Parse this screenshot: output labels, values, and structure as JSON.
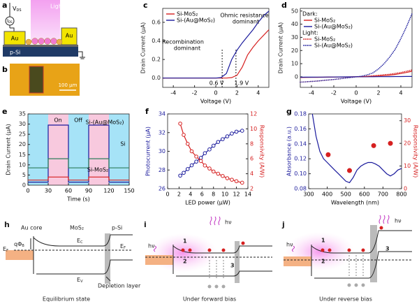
{
  "panel_a": {
    "label": "a",
    "light": "Light",
    "au_left": "Au",
    "au_right": "Au",
    "substrate": "p-Si",
    "v": {
      "main": "V",
      "sub": "DS"
    },
    "i": {
      "main": "I",
      "sub": "DS"
    }
  },
  "panel_b": {
    "label": "b",
    "scale": "100 μm"
  },
  "chart_data": [
    {
      "panel_label": "c",
      "type": "line",
      "xlabel": "Voltage (V)",
      "ylabel": "Drain Current (μA)",
      "xlim": [
        -5,
        5
      ],
      "ylim": [
        -0.1,
        0.75
      ],
      "xticks": [
        -4,
        -2,
        0,
        2,
        4
      ],
      "yticks": [
        {
          "value": 0,
          "label": "0.0"
        },
        0.2,
        0.4,
        0.6
      ],
      "legend": "upper left",
      "x": [
        -5,
        -4.5,
        -4,
        -3.5,
        -3,
        -2.5,
        -2,
        -1.5,
        -1,
        -0.5,
        0,
        0.5,
        1,
        1.5,
        2,
        2.5,
        3,
        3.5,
        4,
        4.5,
        5
      ],
      "series": [
        {
          "name": "Si-MoS₂",
          "color": "#d62020",
          "style": "solid",
          "values": [
            0,
            0,
            0,
            0,
            0,
            0,
            0,
            0,
            0,
            0,
            0,
            0,
            0,
            0.005,
            0.03,
            0.12,
            0.25,
            0.33,
            0.4,
            0.46,
            0.52
          ]
        },
        {
          "name": "Si-(Au@MoS₂)",
          "color": "#1a1a9c",
          "style": "solid",
          "values": [
            0,
            0,
            0,
            0,
            0,
            0,
            0,
            0,
            0,
            0,
            0,
            0.005,
            0.05,
            0.2,
            0.3,
            0.38,
            0.45,
            0.52,
            0.6,
            0.67,
            0.72
          ]
        }
      ],
      "annotations": [
        "Ohmic resistance",
        "dominant",
        "Recombination",
        "dominant"
      ],
      "reference_lines": [
        {
          "value": 0.6,
          "label": "0.6 V"
        },
        {
          "value": 1.9,
          "label": "1.9 V"
        }
      ]
    },
    {
      "panel_label": "d",
      "type": "line",
      "xlabel": "Voltage (V)",
      "ylabel": "Drain Current (μA)",
      "xlim": [
        -5,
        5
      ],
      "ylim": [
        -8,
        52
      ],
      "xticks": [
        -4,
        -2,
        0,
        2,
        4
      ],
      "yticks": [
        0,
        10,
        20,
        30,
        40,
        50
      ],
      "legend": "upper left",
      "legend_groups": [
        {
          "label": "Dark:",
          "series": [
            0,
            1
          ]
        },
        {
          "label": "Light:",
          "series": [
            2,
            3
          ]
        }
      ],
      "x": [
        -5,
        -4.5,
        -4,
        -3.5,
        -3,
        -2.5,
        -2,
        -1.5,
        -1,
        -0.5,
        0,
        0.5,
        1,
        1.5,
        2,
        2.5,
        3,
        3.5,
        4,
        4.5,
        5
      ],
      "series": [
        {
          "name": "Si-MoS₂",
          "color": "#d62020",
          "style": "solid",
          "values": [
            -0.5,
            -0.45,
            -0.4,
            -0.35,
            -0.3,
            -0.25,
            -0.2,
            -0.15,
            -0.1,
            -0.05,
            0,
            0.1,
            0.2,
            0.4,
            0.6,
            0.9,
            1.3,
            1.8,
            2.5,
            3.3,
            4.2
          ]
        },
        {
          "name": "Si-(Au@MoS₂)",
          "color": "#1a1a9c",
          "style": "solid",
          "values": [
            -0.3,
            -0.27,
            -0.24,
            -0.21,
            -0.18,
            -0.15,
            -0.12,
            -0.09,
            -0.06,
            -0.03,
            0,
            0.03,
            0.06,
            0.09,
            0.12,
            0.15,
            0.18,
            0.21,
            0.24,
            0.27,
            0.3
          ]
        },
        {
          "name": "Si-MoS₂",
          "color": "#d62020",
          "style": "dotted",
          "values": [
            -4,
            -3.8,
            -3.5,
            -3.2,
            -2.8,
            -2.4,
            -2,
            -1.5,
            -1,
            -0.5,
            0,
            0.2,
            0.5,
            0.8,
            1.2,
            1.6,
            2,
            2.6,
            3.3,
            4.2,
            5.2
          ]
        },
        {
          "name": "Si-(Au@MoS₂)",
          "color": "#1a1a9c",
          "style": "dotted",
          "values": [
            -4,
            -3.8,
            -3.5,
            -3.2,
            -2.8,
            -2.4,
            -2,
            -1.5,
            -1,
            -0.5,
            0,
            0.5,
            1.5,
            3,
            6,
            10,
            15,
            21,
            29,
            38,
            48
          ]
        }
      ]
    },
    {
      "panel_label": "e",
      "type": "line",
      "xlabel": "Time (s)",
      "ylabel": "Drain Current (μA)",
      "xlim": [
        0,
        150
      ],
      "ylim": [
        0,
        35
      ],
      "xticks": [
        0,
        30,
        60,
        90,
        120,
        150
      ],
      "yticks": [
        0,
        5,
        10,
        15,
        20,
        25,
        30,
        35
      ],
      "on_intervals": [
        [
          30,
          60
        ],
        [
          90,
          120
        ]
      ],
      "x": [
        0,
        30,
        30,
        60,
        60,
        90,
        90,
        120,
        120,
        150
      ],
      "series": [
        {
          "name": "Si-(Au@MoS₂)",
          "color": "#1a1a9c",
          "style": "solid",
          "values": [
            1.5,
            1.5,
            29.5,
            29.5,
            1.5,
            1.5,
            29.5,
            29.5,
            1.5,
            1.5
          ]
        },
        {
          "name": "Si",
          "color": "#2e7d5b",
          "style": "solid",
          "values": [
            8.5,
            8.5,
            13,
            13,
            8.5,
            8.5,
            13,
            13,
            8.5,
            8.5
          ]
        },
        {
          "name": "Si-MoS₂",
          "color": "#d62020",
          "style": "solid",
          "values": [
            2.5,
            2.5,
            4,
            4,
            2.5,
            2.5,
            4,
            4,
            2.5,
            2.5
          ]
        }
      ],
      "annotations": [
        "On",
        "Off",
        "Si-(Au@MoS₂)",
        "Si",
        "Si-MoS₂"
      ]
    },
    {
      "panel_label": "f",
      "type": "line",
      "xlabel": "LED power (μW)",
      "ylabel": "Photocurrent (μA)",
      "y2label": "Responsivity (A/W)",
      "xlim": [
        0,
        14
      ],
      "ylim": [
        26,
        34
      ],
      "y2lim": [
        2,
        12
      ],
      "xticks": [
        0,
        2,
        4,
        6,
        8,
        10,
        12,
        14
      ],
      "yticks": [
        26,
        28,
        30,
        32,
        34
      ],
      "y2ticks": [
        2,
        4,
        6,
        8,
        10,
        12
      ],
      "x": [
        2.2,
        2.8,
        3.5,
        4.2,
        5,
        5.8,
        6.5,
        7.3,
        8,
        8.8,
        9.6,
        10.4,
        11.2,
        12,
        13
      ],
      "series": [
        {
          "name": "Photocurrent",
          "color": "#1a1a9c",
          "style": "solid",
          "markers": true,
          "values": [
            27.4,
            27.7,
            28.1,
            28.5,
            28.9,
            29.3,
            29.8,
            30.2,
            30.6,
            31,
            31.3,
            31.6,
            31.9,
            32.1,
            32.2
          ]
        },
        {
          "name": "Responsivity",
          "color": "#d62020",
          "style": "solid",
          "markers": true,
          "axis": "y2",
          "values": [
            10.7,
            9.2,
            8,
            7,
            6.3,
            5.7,
            5.1,
            4.7,
            4.3,
            4,
            3.7,
            3.4,
            3.2,
            3,
            2.8
          ]
        }
      ]
    },
    {
      "panel_label": "g",
      "type": "line",
      "xlabel": "Wavelength (nm)",
      "ylabel": "Absorbance (a.u.)",
      "y2label": "Responsivity (A/W)",
      "xlim": [
        300,
        800
      ],
      "ylim": [
        0.08,
        0.18
      ],
      "y2lim": [
        0,
        33
      ],
      "xticks": [
        300,
        400,
        500,
        600,
        700,
        800
      ],
      "yticks": [
        0.08,
        {
          "value": 0.1,
          "label": "0.10"
        },
        0.12,
        0.14,
        0.16,
        0.18
      ],
      "y2ticks": [
        0,
        10,
        20,
        30
      ],
      "series": [
        {
          "name": "Absorbance",
          "color": "#1a1a9c",
          "style": "solid",
          "x": [
            320,
            340,
            360,
            380,
            400,
            420,
            440,
            460,
            480,
            500,
            520,
            540,
            560,
            580,
            600,
            620,
            640,
            660,
            680,
            700,
            720,
            740,
            760,
            780,
            800
          ],
          "values": [
            0.18,
            0.15,
            0.13,
            0.12,
            0.115,
            0.11,
            0.105,
            0.1,
            0.095,
            0.09,
            0.088,
            0.095,
            0.105,
            0.11,
            0.113,
            0.115,
            0.115,
            0.113,
            0.11,
            0.105,
            0.1,
            0.097,
            0.1,
            0.105,
            0.107
          ]
        },
        {
          "name": "Responsivity",
          "color": "#d62020",
          "style": "none",
          "markers": true,
          "axis": "y2",
          "x": [
            405,
            520,
            650,
            740
          ],
          "values": [
            15,
            8,
            19,
            20
          ]
        }
      ]
    }
  ],
  "panel_h": {
    "label": "h",
    "au": "Au core",
    "mos2": "MoS₂",
    "si": "p-Si",
    "barrier": {
      "main": "qΦ",
      "sub": "B"
    },
    "ec": {
      "main": "E",
      "sub": "C"
    },
    "ef_left": {
      "main": "E",
      "sub": "F"
    },
    "ef_right": {
      "main": "E",
      "sub": "F"
    },
    "ev": {
      "main": "E",
      "sub": "V"
    },
    "depletion": "Depletion layer",
    "caption": "Equilibrium state"
  },
  "panel_i": {
    "label": "i",
    "hv_left": "hν",
    "n1": "1",
    "n2": "2",
    "n3": "3",
    "hv_right": "hν",
    "caption": "Under forward bias"
  },
  "panel_j": {
    "label": "j",
    "hv_left": "hν",
    "n1": "1",
    "n2": "2",
    "n3": "3",
    "hv_right": "hν",
    "caption": "Under reverse bias"
  }
}
